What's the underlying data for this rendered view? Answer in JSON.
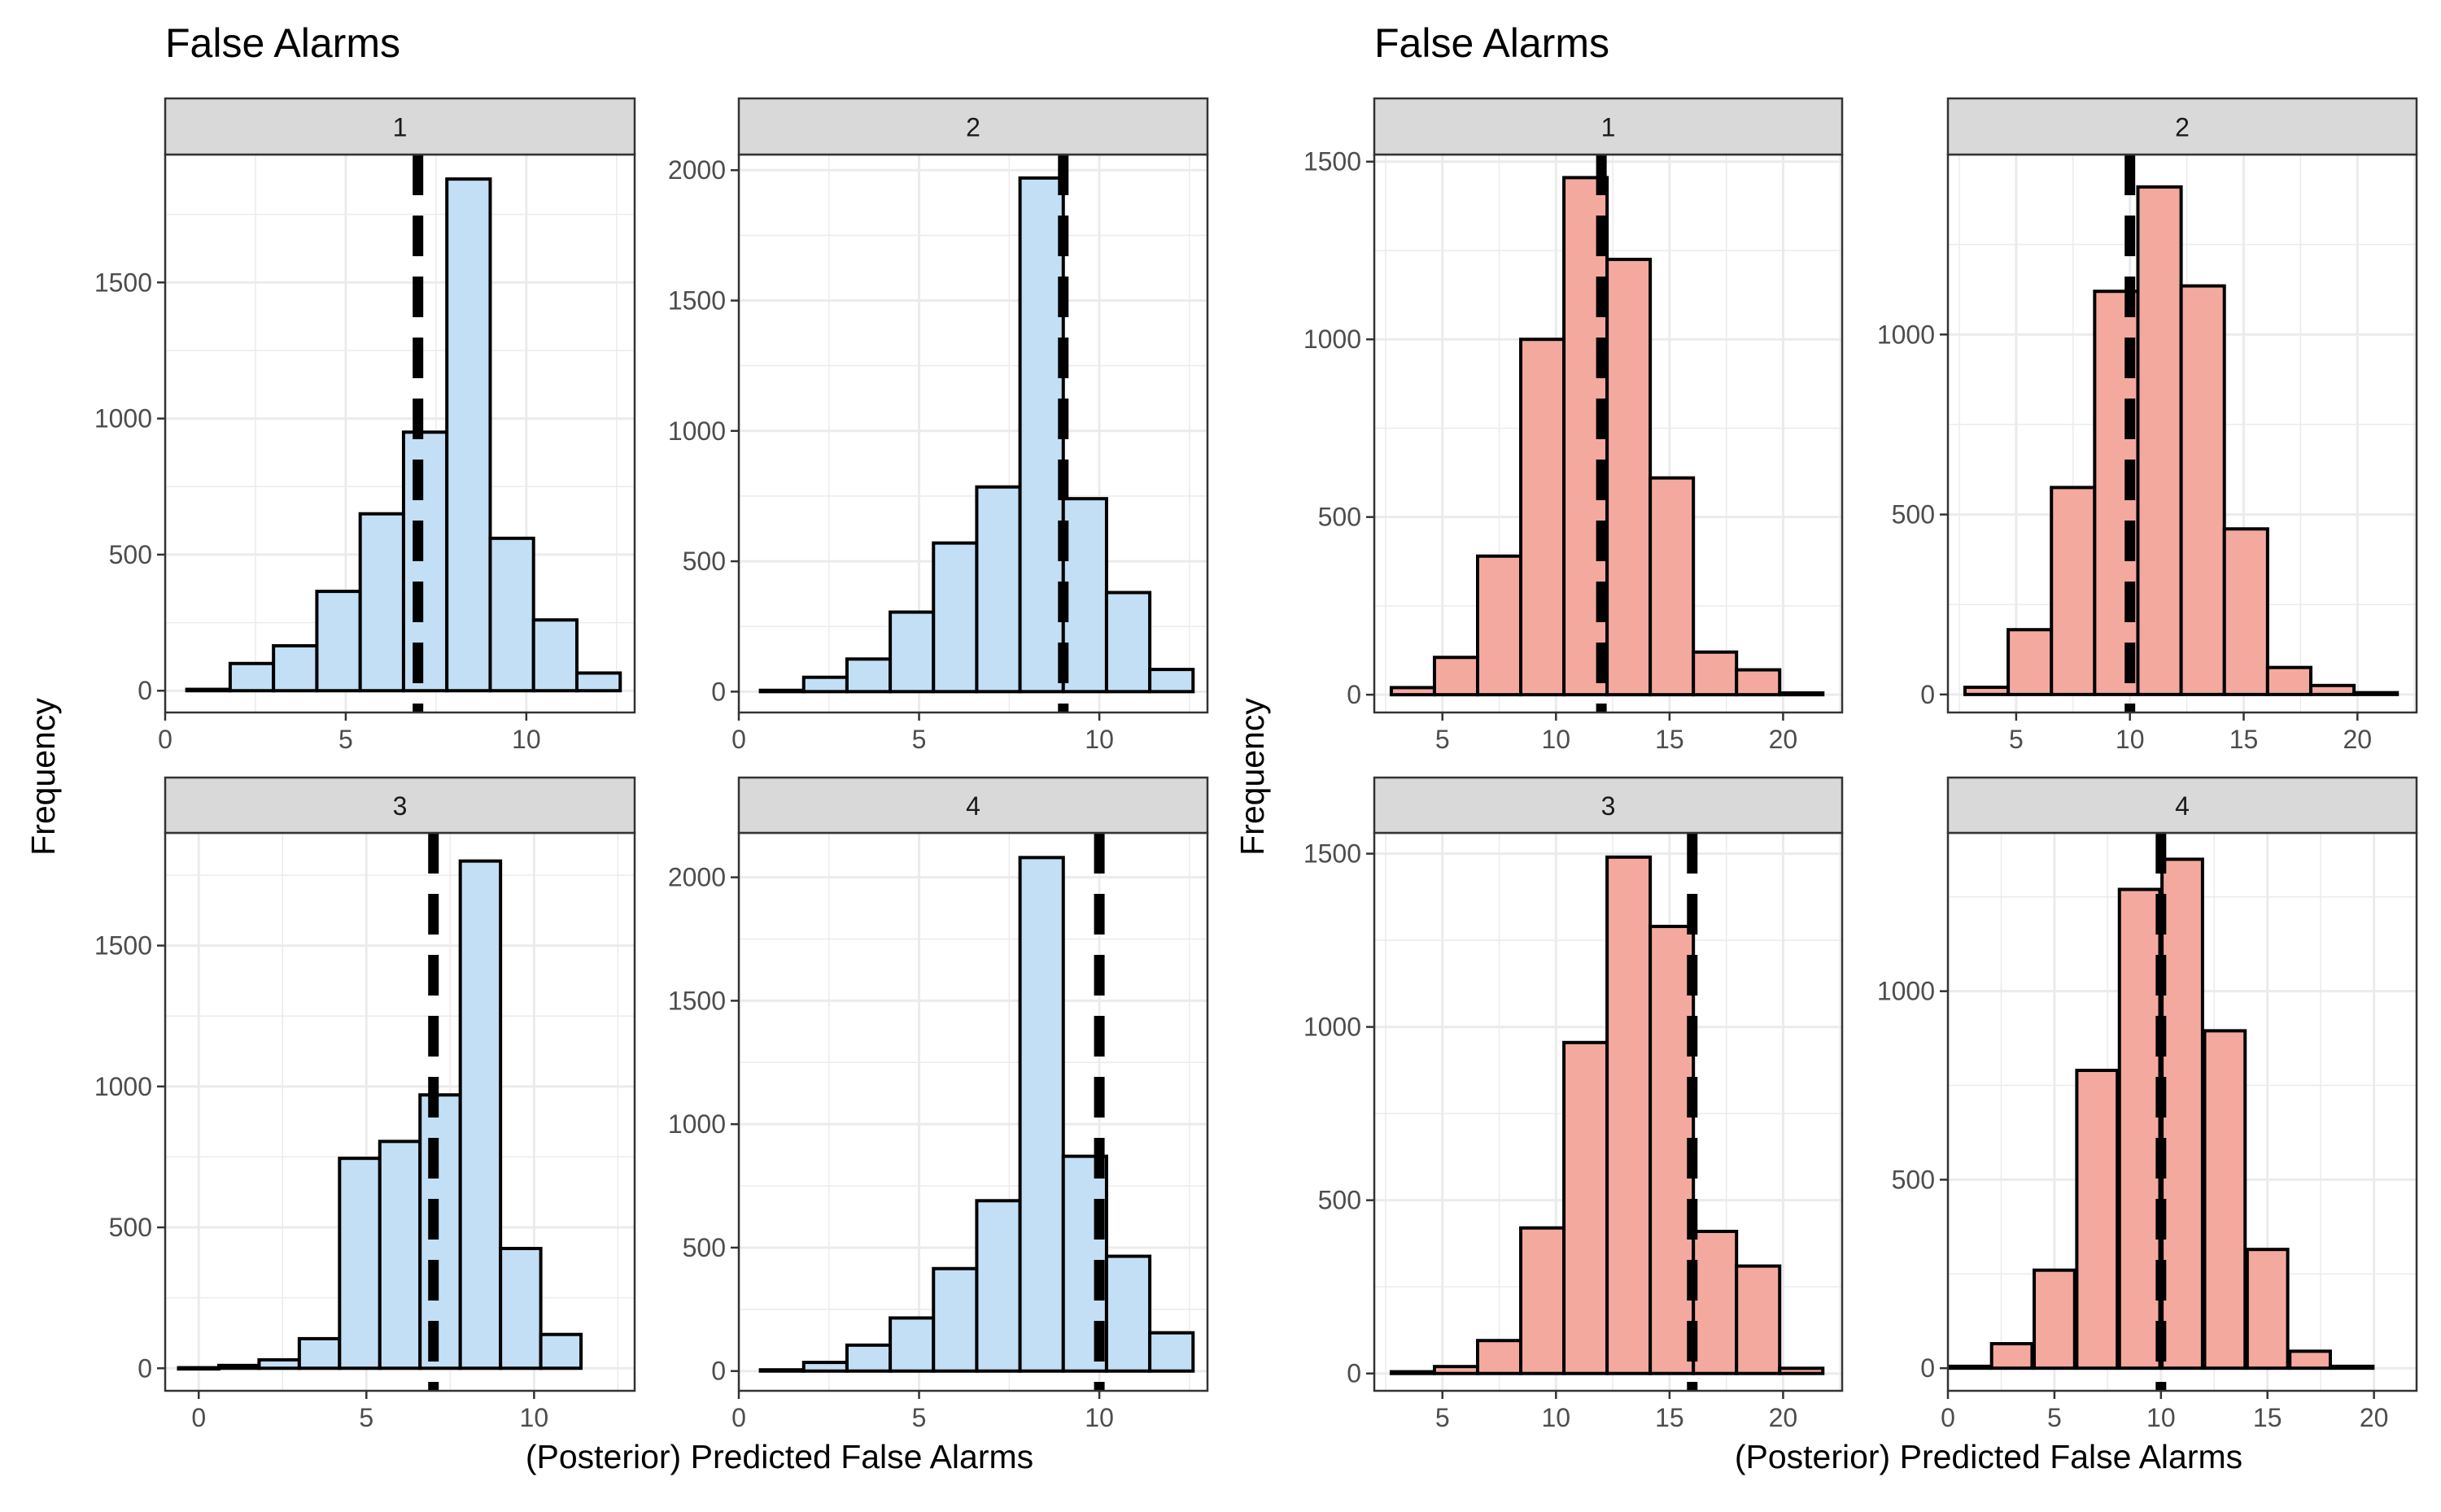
{
  "colors": {
    "blue_fill": "#c3dff5",
    "red_fill": "#f4a99f",
    "bar_stroke": "#000000",
    "strip_fill": "#d9d9d9",
    "grid": "#ebebeb",
    "frame": "#333333",
    "tick_text": "#4d4d4d"
  },
  "chart_data": [
    {
      "type": "bar",
      "title": "False Alarms",
      "xlabel": "(Posterior) Predicted False Alarms",
      "ylabel": "Frequency",
      "fill": "blue_fill",
      "bin_width": 1.2,
      "panels": [
        {
          "label": "1",
          "xlim": [
            0,
            13
          ],
          "ylim": [
            -80,
            1970
          ],
          "xticks": [
            0,
            5,
            10
          ],
          "yticks": [
            0,
            500,
            1000,
            1500
          ],
          "ref_line": 7,
          "bins": [
            {
              "center": 1.2,
              "count": 5
            },
            {
              "center": 2.4,
              "count": 100
            },
            {
              "center": 3.6,
              "count": 165
            },
            {
              "center": 4.8,
              "count": 365
            },
            {
              "center": 6.0,
              "count": 650
            },
            {
              "center": 7.2,
              "count": 950
            },
            {
              "center": 8.4,
              "count": 1880
            },
            {
              "center": 9.6,
              "count": 560
            },
            {
              "center": 10.8,
              "count": 260
            },
            {
              "center": 12.0,
              "count": 65
            }
          ]
        },
        {
          "label": "2",
          "xlim": [
            0,
            13
          ],
          "ylim": [
            -80,
            2060
          ],
          "xticks": [
            0,
            5,
            10
          ],
          "yticks": [
            0,
            500,
            1000,
            1500,
            2000
          ],
          "ref_line": 9,
          "bins": [
            {
              "center": 1.2,
              "count": 5
            },
            {
              "center": 2.4,
              "count": 55
            },
            {
              "center": 3.6,
              "count": 125
            },
            {
              "center": 4.8,
              "count": 305
            },
            {
              "center": 6.0,
              "count": 570
            },
            {
              "center": 7.2,
              "count": 785
            },
            {
              "center": 8.4,
              "count": 1970
            },
            {
              "center": 9.6,
              "count": 740
            },
            {
              "center": 10.8,
              "count": 380
            },
            {
              "center": 12.0,
              "count": 85
            }
          ]
        },
        {
          "label": "3",
          "xlim": [
            -1,
            13
          ],
          "ylim": [
            -80,
            1900
          ],
          "xticks": [
            0,
            5,
            10
          ],
          "yticks": [
            0,
            500,
            1000,
            1500
          ],
          "ref_line": 7,
          "bins": [
            {
              "center": 0.0,
              "count": 2
            },
            {
              "center": 1.2,
              "count": 10
            },
            {
              "center": 2.4,
              "count": 30
            },
            {
              "center": 3.6,
              "count": 105
            },
            {
              "center": 4.8,
              "count": 745
            },
            {
              "center": 6.0,
              "count": 805
            },
            {
              "center": 7.2,
              "count": 970
            },
            {
              "center": 8.4,
              "count": 1800
            },
            {
              "center": 9.6,
              "count": 425
            },
            {
              "center": 10.8,
              "count": 120
            }
          ]
        },
        {
          "label": "4",
          "xlim": [
            0,
            13
          ],
          "ylim": [
            -80,
            2180
          ],
          "xticks": [
            0,
            5,
            10
          ],
          "yticks": [
            0,
            500,
            1000,
            1500,
            2000
          ],
          "ref_line": 10,
          "bins": [
            {
              "center": 1.2,
              "count": 5
            },
            {
              "center": 2.4,
              "count": 35
            },
            {
              "center": 3.6,
              "count": 105
            },
            {
              "center": 4.8,
              "count": 215
            },
            {
              "center": 6.0,
              "count": 415
            },
            {
              "center": 7.2,
              "count": 690
            },
            {
              "center": 8.4,
              "count": 2080
            },
            {
              "center": 9.6,
              "count": 870
            },
            {
              "center": 10.8,
              "count": 465
            },
            {
              "center": 12.0,
              "count": 155
            }
          ]
        }
      ]
    },
    {
      "type": "bar",
      "title": "False Alarms",
      "xlabel": "(Posterior) Predicted False Alarms",
      "ylabel": "Frequency",
      "fill": "red_fill",
      "bin_width": 1.9,
      "panels": [
        {
          "label": "1",
          "xlim": [
            2,
            22.6
          ],
          "ylim": [
            -50,
            1520
          ],
          "xticks": [
            5,
            10,
            15,
            20
          ],
          "yticks": [
            0,
            500,
            1000,
            1500
          ],
          "ref_line": 12,
          "bins": [
            {
              "center": 3.7,
              "count": 20
            },
            {
              "center": 5.6,
              "count": 105
            },
            {
              "center": 7.5,
              "count": 390
            },
            {
              "center": 9.4,
              "count": 1000
            },
            {
              "center": 11.3,
              "count": 1455
            },
            {
              "center": 13.2,
              "count": 1225
            },
            {
              "center": 15.1,
              "count": 610
            },
            {
              "center": 17.0,
              "count": 120
            },
            {
              "center": 18.9,
              "count": 70
            },
            {
              "center": 20.8,
              "count": 5
            }
          ]
        },
        {
          "label": "2",
          "xlim": [
            2,
            22.6
          ],
          "ylim": [
            -50,
            1500
          ],
          "xticks": [
            5,
            10,
            15,
            20
          ],
          "yticks": [
            0,
            500,
            1000
          ],
          "ref_line": 10,
          "bins": [
            {
              "center": 3.7,
              "count": 20
            },
            {
              "center": 5.6,
              "count": 180
            },
            {
              "center": 7.5,
              "count": 575
            },
            {
              "center": 9.4,
              "count": 1120
            },
            {
              "center": 11.3,
              "count": 1410
            },
            {
              "center": 13.2,
              "count": 1135
            },
            {
              "center": 15.1,
              "count": 460
            },
            {
              "center": 17.0,
              "count": 75
            },
            {
              "center": 18.9,
              "count": 25
            },
            {
              "center": 20.8,
              "count": 5
            }
          ]
        },
        {
          "label": "3",
          "xlim": [
            2,
            22.6
          ],
          "ylim": [
            -50,
            1560
          ],
          "xticks": [
            5,
            10,
            15,
            20
          ],
          "yticks": [
            0,
            500,
            1000,
            1500
          ],
          "ref_line": 16,
          "bins": [
            {
              "center": 3.7,
              "count": 5
            },
            {
              "center": 5.6,
              "count": 20
            },
            {
              "center": 7.5,
              "count": 95
            },
            {
              "center": 9.4,
              "count": 420
            },
            {
              "center": 11.3,
              "count": 955
            },
            {
              "center": 13.2,
              "count": 1490
            },
            {
              "center": 15.1,
              "count": 1290
            },
            {
              "center": 17.0,
              "count": 410
            },
            {
              "center": 18.9,
              "count": 310
            },
            {
              "center": 20.8,
              "count": 15
            }
          ]
        },
        {
          "label": "4",
          "xlim": [
            0,
            22
          ],
          "ylim": [
            -60,
            1420
          ],
          "xticks": [
            0,
            5,
            10,
            15,
            20
          ],
          "yticks": [
            0,
            500,
            1000
          ],
          "ref_line": 10,
          "bins": [
            {
              "center": 1.0,
              "count": 5
            },
            {
              "center": 3.0,
              "count": 65
            },
            {
              "center": 5.0,
              "count": 260
            },
            {
              "center": 7.0,
              "count": 790
            },
            {
              "center": 9.0,
              "count": 1270
            },
            {
              "center": 11.0,
              "count": 1350
            },
            {
              "center": 13.0,
              "count": 895
            },
            {
              "center": 15.0,
              "count": 315
            },
            {
              "center": 17.0,
              "count": 45
            },
            {
              "center": 19.0,
              "count": 5
            }
          ]
        }
      ]
    }
  ]
}
